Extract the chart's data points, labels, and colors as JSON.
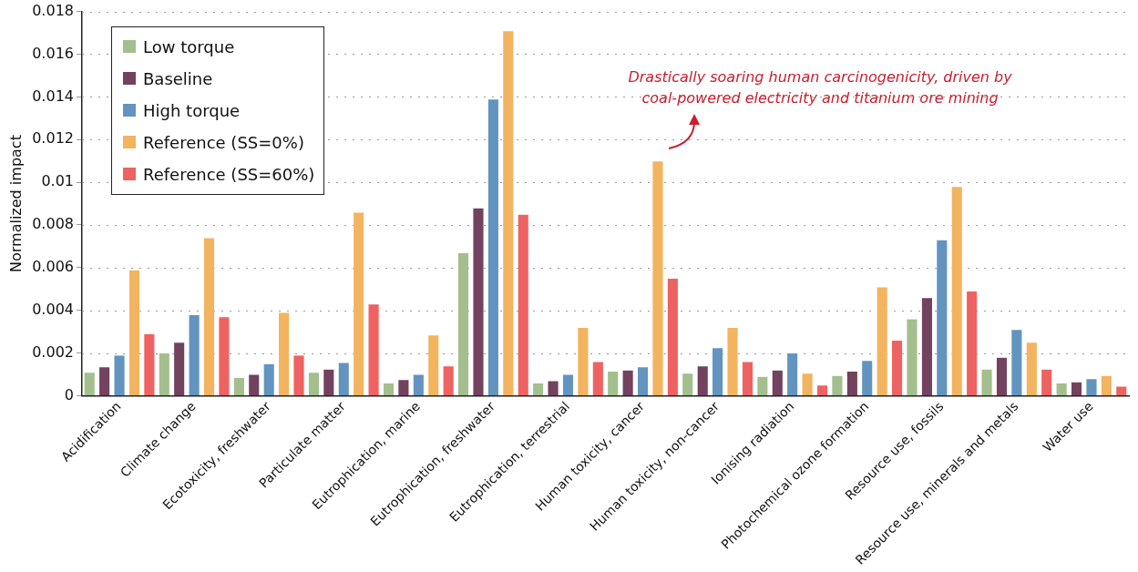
{
  "chart_data": {
    "type": "bar",
    "ylabel": "Normalized impact",
    "categories": [
      "Acidification",
      "Climate change",
      "Ecotoxicity, freshwater",
      "Particulate matter",
      "Eutrophication, marine",
      "Eutrophication, freshwater",
      "Eutrophication, terrestrial",
      "Human toxicity, cancer",
      "Human toxicity, non-cancer",
      "Ionising radiation",
      "Photochemical ozone formation",
      "Resource use, fossils",
      "Resource use, minerals and metals",
      "Water use"
    ],
    "series": [
      {
        "name": "Low torque",
        "color": "#a3bf8d",
        "values": [
          0.0011,
          0.002,
          0.00085,
          0.0011,
          0.0006,
          0.0067,
          0.0006,
          0.00115,
          0.00105,
          0.0009,
          0.00095,
          0.0036,
          0.00125,
          0.0006
        ]
      },
      {
        "name": "Baseline",
        "color": "#72425f",
        "values": [
          0.00135,
          0.0025,
          0.001,
          0.00125,
          0.00075,
          0.0088,
          0.0007,
          0.0012,
          0.0014,
          0.0012,
          0.00115,
          0.0046,
          0.0018,
          0.00065
        ]
      },
      {
        "name": "High torque",
        "color": "#6394c0",
        "values": [
          0.0019,
          0.0038,
          0.0015,
          0.00155,
          0.001,
          0.0139,
          0.001,
          0.00135,
          0.00225,
          0.002,
          0.00165,
          0.0073,
          0.0031,
          0.0008
        ]
      },
      {
        "name": "Reference (SS=0%)",
        "color": "#f2b45f",
        "values": [
          0.0059,
          0.0074,
          0.0039,
          0.0086,
          0.00285,
          0.0171,
          0.0032,
          0.011,
          0.0032,
          0.00105,
          0.0051,
          0.0098,
          0.0025,
          0.00095
        ]
      },
      {
        "name": "Reference (SS=60%)",
        "color": "#ef6262",
        "values": [
          0.0029,
          0.0037,
          0.0019,
          0.0043,
          0.0014,
          0.0085,
          0.0016,
          0.0055,
          0.0016,
          0.0005,
          0.0026,
          0.0049,
          0.00125,
          0.00045
        ]
      }
    ],
    "ylim": [
      0,
      0.018
    ],
    "yticks": [
      0,
      0.002,
      0.004,
      0.006,
      0.008,
      {
        "value": 0.01,
        "label": "0.01"
      },
      0.012,
      0.014,
      0.016,
      0.018
    ],
    "grid": "y",
    "legend": "top left",
    "annotations": [
      "Drastically soaring human carcinogenicity, driven by coal-powered electricity and titanium ore mining"
    ]
  }
}
